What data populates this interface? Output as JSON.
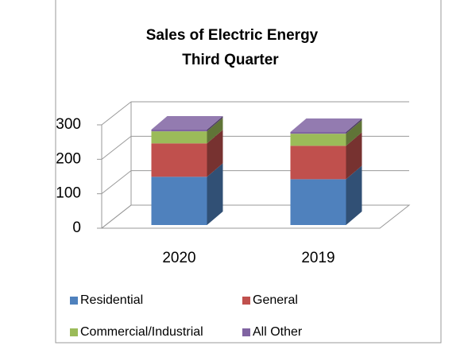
{
  "chart_data": {
    "type": "bar3d_stacked",
    "title": "Sales of Electric Energy",
    "subtitle": "Third Quarter",
    "categories": [
      "2020",
      "2019"
    ],
    "series": [
      {
        "name": "Residential",
        "color": "#4f81bd",
        "values": [
          140,
          133
        ]
      },
      {
        "name": "General",
        "color": "#c0504d",
        "values": [
          97,
          97
        ]
      },
      {
        "name": "Commercial/Industrial",
        "color": "#9bbb59",
        "values": [
          35,
          35
        ]
      },
      {
        "name": "All Other",
        "color": "#8064a2",
        "values": [
          5,
          5
        ]
      }
    ],
    "ylim": [
      0,
      300
    ],
    "yticks": [
      0,
      100,
      200,
      300
    ],
    "grid": true
  }
}
